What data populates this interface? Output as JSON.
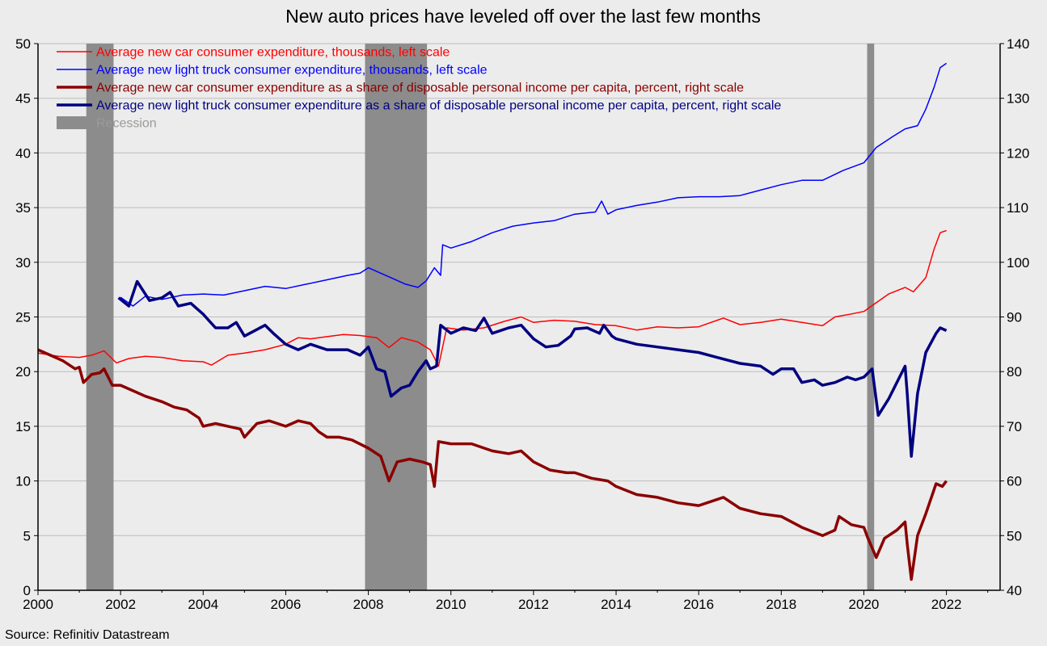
{
  "chart_data": {
    "type": "line",
    "title": "New auto prices have leveled off over the last few months",
    "source": "Source: Refinitiv Datastream",
    "x_ticks": [
      "2000",
      "2002",
      "2004",
      "2006",
      "2008",
      "2010",
      "2012",
      "2014",
      "2016",
      "2018",
      "2020",
      "2022"
    ],
    "xlim": [
      2000,
      2023.3
    ],
    "y_left": {
      "ylim": [
        0,
        50
      ],
      "ticks": [
        0,
        5,
        10,
        15,
        20,
        25,
        30,
        35,
        40,
        45,
        50
      ]
    },
    "y_right": {
      "ylim": [
        40,
        140
      ],
      "ticks": [
        40,
        50,
        60,
        70,
        80,
        90,
        100,
        110,
        120,
        130,
        140
      ]
    },
    "grid": true,
    "legend_position": "top-left",
    "recessions": [
      {
        "start": 2001.17,
        "end": 2001.83
      },
      {
        "start": 2007.92,
        "end": 2009.42
      },
      {
        "start": 2020.08,
        "end": 2020.25
      }
    ],
    "recession_label": "Recession",
    "recession_color": "#8c8c8c",
    "series": [
      {
        "name": "Average new car consumer expenditure, thousands, left scale",
        "axis": "left",
        "color": "#ff0000",
        "width": 1.5,
        "points": [
          [
            2000.0,
            21.7
          ],
          [
            2000.5,
            21.4
          ],
          [
            2001.0,
            21.3
          ],
          [
            2001.3,
            21.5
          ],
          [
            2001.6,
            21.9
          ],
          [
            2001.9,
            20.8
          ],
          [
            2002.2,
            21.2
          ],
          [
            2002.6,
            21.4
          ],
          [
            2003.0,
            21.3
          ],
          [
            2003.5,
            21.0
          ],
          [
            2004.0,
            20.9
          ],
          [
            2004.2,
            20.6
          ],
          [
            2004.6,
            21.5
          ],
          [
            2005.0,
            21.7
          ],
          [
            2005.5,
            22.0
          ],
          [
            2006.0,
            22.5
          ],
          [
            2006.3,
            23.1
          ],
          [
            2006.6,
            23.0
          ],
          [
            2007.0,
            23.2
          ],
          [
            2007.4,
            23.4
          ],
          [
            2007.8,
            23.3
          ],
          [
            2008.2,
            23.1
          ],
          [
            2008.5,
            22.2
          ],
          [
            2008.8,
            23.1
          ],
          [
            2009.2,
            22.7
          ],
          [
            2009.5,
            22.0
          ],
          [
            2009.7,
            20.5
          ],
          [
            2009.9,
            24.0
          ],
          [
            2010.3,
            23.8
          ],
          [
            2010.8,
            24.0
          ],
          [
            2011.3,
            24.6
          ],
          [
            2011.7,
            25.0
          ],
          [
            2012.0,
            24.5
          ],
          [
            2012.5,
            24.7
          ],
          [
            2013.0,
            24.6
          ],
          [
            2013.5,
            24.3
          ],
          [
            2014.0,
            24.2
          ],
          [
            2014.5,
            23.8
          ],
          [
            2015.0,
            24.1
          ],
          [
            2015.5,
            24.0
          ],
          [
            2016.0,
            24.1
          ],
          [
            2016.6,
            24.9
          ],
          [
            2017.0,
            24.3
          ],
          [
            2017.5,
            24.5
          ],
          [
            2018.0,
            24.8
          ],
          [
            2018.5,
            24.5
          ],
          [
            2019.0,
            24.2
          ],
          [
            2019.3,
            25.0
          ],
          [
            2019.6,
            25.2
          ],
          [
            2020.0,
            25.5
          ],
          [
            2020.3,
            26.3
          ],
          [
            2020.6,
            27.1
          ],
          [
            2021.0,
            27.7
          ],
          [
            2021.2,
            27.3
          ],
          [
            2021.5,
            28.6
          ],
          [
            2021.7,
            31.2
          ],
          [
            2021.85,
            32.7
          ],
          [
            2022.0,
            32.9
          ]
        ]
      },
      {
        "name": "Average new light truck consumer expenditure, thousands, left scale",
        "axis": "left",
        "color": "#0000ff",
        "width": 1.5,
        "points": [
          [
            2002.0,
            26.8
          ],
          [
            2002.3,
            26.0
          ],
          [
            2002.6,
            26.9
          ],
          [
            2003.0,
            26.6
          ],
          [
            2003.5,
            27.0
          ],
          [
            2004.0,
            27.1
          ],
          [
            2004.5,
            27.0
          ],
          [
            2005.0,
            27.4
          ],
          [
            2005.5,
            27.8
          ],
          [
            2006.0,
            27.6
          ],
          [
            2006.5,
            28.0
          ],
          [
            2007.0,
            28.4
          ],
          [
            2007.5,
            28.8
          ],
          [
            2007.8,
            29.0
          ],
          [
            2008.0,
            29.5
          ],
          [
            2008.3,
            29.0
          ],
          [
            2008.6,
            28.5
          ],
          [
            2008.9,
            28.0
          ],
          [
            2009.2,
            27.7
          ],
          [
            2009.4,
            28.3
          ],
          [
            2009.6,
            29.5
          ],
          [
            2009.75,
            28.8
          ],
          [
            2009.8,
            31.6
          ],
          [
            2010.0,
            31.3
          ],
          [
            2010.5,
            31.9
          ],
          [
            2011.0,
            32.7
          ],
          [
            2011.5,
            33.3
          ],
          [
            2012.0,
            33.6
          ],
          [
            2012.5,
            33.8
          ],
          [
            2013.0,
            34.4
          ],
          [
            2013.5,
            34.6
          ],
          [
            2013.65,
            35.6
          ],
          [
            2013.8,
            34.4
          ],
          [
            2014.0,
            34.8
          ],
          [
            2014.5,
            35.2
          ],
          [
            2015.0,
            35.5
          ],
          [
            2015.5,
            35.9
          ],
          [
            2016.0,
            36.0
          ],
          [
            2016.5,
            36.0
          ],
          [
            2017.0,
            36.1
          ],
          [
            2017.5,
            36.6
          ],
          [
            2018.0,
            37.1
          ],
          [
            2018.5,
            37.5
          ],
          [
            2019.0,
            37.5
          ],
          [
            2019.5,
            38.4
          ],
          [
            2020.0,
            39.1
          ],
          [
            2020.3,
            40.5
          ],
          [
            2020.7,
            41.5
          ],
          [
            2021.0,
            42.2
          ],
          [
            2021.3,
            42.5
          ],
          [
            2021.5,
            44.0
          ],
          [
            2021.7,
            46.0
          ],
          [
            2021.85,
            47.8
          ],
          [
            2022.0,
            48.2
          ]
        ]
      },
      {
        "name": "Average new car consumer expenditure as a share of disposable personal income per capita, percent, right scale",
        "axis": "right",
        "color": "#8b0000",
        "width": 3.5,
        "points": [
          [
            2000.0,
            84.0
          ],
          [
            2000.3,
            83.0
          ],
          [
            2000.6,
            82.0
          ],
          [
            2000.9,
            80.5
          ],
          [
            2001.0,
            80.8
          ],
          [
            2001.1,
            78.0
          ],
          [
            2001.3,
            79.5
          ],
          [
            2001.5,
            79.8
          ],
          [
            2001.6,
            80.5
          ],
          [
            2001.8,
            77.5
          ],
          [
            2002.0,
            77.5
          ],
          [
            2002.3,
            76.5
          ],
          [
            2002.6,
            75.5
          ],
          [
            2003.0,
            74.5
          ],
          [
            2003.3,
            73.5
          ],
          [
            2003.6,
            73.0
          ],
          [
            2003.9,
            71.5
          ],
          [
            2004.0,
            70.0
          ],
          [
            2004.3,
            70.5
          ],
          [
            2004.6,
            70.0
          ],
          [
            2004.9,
            69.5
          ],
          [
            2005.0,
            68.0
          ],
          [
            2005.3,
            70.5
          ],
          [
            2005.6,
            71.0
          ],
          [
            2006.0,
            70.0
          ],
          [
            2006.3,
            71.0
          ],
          [
            2006.6,
            70.5
          ],
          [
            2006.8,
            69.0
          ],
          [
            2007.0,
            68.0
          ],
          [
            2007.3,
            68.0
          ],
          [
            2007.6,
            67.5
          ],
          [
            2008.0,
            66.0
          ],
          [
            2008.3,
            64.5
          ],
          [
            2008.5,
            60.0
          ],
          [
            2008.7,
            63.5
          ],
          [
            2009.0,
            64.0
          ],
          [
            2009.3,
            63.5
          ],
          [
            2009.5,
            63.0
          ],
          [
            2009.6,
            59.0
          ],
          [
            2009.7,
            67.2
          ],
          [
            2010.0,
            66.8
          ],
          [
            2010.5,
            66.8
          ],
          [
            2011.0,
            65.5
          ],
          [
            2011.4,
            65.0
          ],
          [
            2011.7,
            65.5
          ],
          [
            2012.0,
            63.5
          ],
          [
            2012.4,
            62.0
          ],
          [
            2012.8,
            61.5
          ],
          [
            2013.0,
            61.5
          ],
          [
            2013.4,
            60.5
          ],
          [
            2013.8,
            60.0
          ],
          [
            2014.0,
            59.0
          ],
          [
            2014.5,
            57.5
          ],
          [
            2015.0,
            57.0
          ],
          [
            2015.5,
            56.0
          ],
          [
            2016.0,
            55.5
          ],
          [
            2016.6,
            57.0
          ],
          [
            2017.0,
            55.0
          ],
          [
            2017.5,
            54.0
          ],
          [
            2018.0,
            53.5
          ],
          [
            2018.5,
            51.5
          ],
          [
            2019.0,
            50.0
          ],
          [
            2019.3,
            51.0
          ],
          [
            2019.4,
            53.5
          ],
          [
            2019.7,
            52.0
          ],
          [
            2020.0,
            51.5
          ],
          [
            2020.1,
            49.5
          ],
          [
            2020.3,
            46.0
          ],
          [
            2020.5,
            49.5
          ],
          [
            2020.8,
            51.0
          ],
          [
            2021.0,
            52.5
          ],
          [
            2021.05,
            48.5
          ],
          [
            2021.15,
            42.0
          ],
          [
            2021.3,
            50.0
          ],
          [
            2021.5,
            54.0
          ],
          [
            2021.75,
            59.5
          ],
          [
            2021.9,
            59.0
          ],
          [
            2022.0,
            60.0
          ]
        ]
      },
      {
        "name": "Average new light truck consumer expenditure as a share of disposable personal income per capita, percent, right scale",
        "axis": "right",
        "color": "#000080",
        "width": 3.5,
        "points": [
          [
            2001.95,
            93.5
          ],
          [
            2002.2,
            92.0
          ],
          [
            2002.4,
            96.5
          ],
          [
            2002.7,
            93.0
          ],
          [
            2003.0,
            93.5
          ],
          [
            2003.2,
            94.5
          ],
          [
            2003.4,
            92.0
          ],
          [
            2003.7,
            92.5
          ],
          [
            2004.0,
            90.5
          ],
          [
            2004.3,
            88.0
          ],
          [
            2004.6,
            88.0
          ],
          [
            2004.8,
            89.0
          ],
          [
            2005.0,
            86.5
          ],
          [
            2005.5,
            88.5
          ],
          [
            2005.7,
            87.0
          ],
          [
            2006.0,
            85.0
          ],
          [
            2006.3,
            84.0
          ],
          [
            2006.6,
            85.0
          ],
          [
            2007.0,
            84.0
          ],
          [
            2007.5,
            84.0
          ],
          [
            2007.8,
            83.0
          ],
          [
            2008.0,
            84.5
          ],
          [
            2008.2,
            80.5
          ],
          [
            2008.4,
            80.0
          ],
          [
            2008.55,
            75.5
          ],
          [
            2008.8,
            77.0
          ],
          [
            2009.0,
            77.5
          ],
          [
            2009.2,
            80.0
          ],
          [
            2009.4,
            82.0
          ],
          [
            2009.5,
            80.5
          ],
          [
            2009.65,
            81.0
          ],
          [
            2009.75,
            88.5
          ],
          [
            2010.0,
            87.0
          ],
          [
            2010.3,
            88.0
          ],
          [
            2010.6,
            87.5
          ],
          [
            2010.8,
            89.8
          ],
          [
            2011.0,
            87.0
          ],
          [
            2011.4,
            88.0
          ],
          [
            2011.7,
            88.5
          ],
          [
            2012.0,
            86.0
          ],
          [
            2012.3,
            84.5
          ],
          [
            2012.6,
            84.8
          ],
          [
            2012.9,
            86.5
          ],
          [
            2013.0,
            87.8
          ],
          [
            2013.3,
            88.0
          ],
          [
            2013.6,
            87.0
          ],
          [
            2013.7,
            88.5
          ],
          [
            2013.9,
            86.5
          ],
          [
            2014.0,
            86.0
          ],
          [
            2014.5,
            85.0
          ],
          [
            2015.0,
            84.5
          ],
          [
            2015.5,
            84.0
          ],
          [
            2016.0,
            83.5
          ],
          [
            2016.5,
            82.5
          ],
          [
            2017.0,
            81.5
          ],
          [
            2017.5,
            81.0
          ],
          [
            2017.8,
            79.5
          ],
          [
            2018.0,
            80.5
          ],
          [
            2018.3,
            80.5
          ],
          [
            2018.5,
            78.0
          ],
          [
            2018.8,
            78.5
          ],
          [
            2019.0,
            77.5
          ],
          [
            2019.3,
            78.0
          ],
          [
            2019.6,
            79.0
          ],
          [
            2019.8,
            78.5
          ],
          [
            2020.0,
            79.0
          ],
          [
            2020.2,
            80.5
          ],
          [
            2020.35,
            72.0
          ],
          [
            2020.6,
            75.0
          ],
          [
            2020.8,
            78.0
          ],
          [
            2021.0,
            81.0
          ],
          [
            2021.05,
            76.0
          ],
          [
            2021.15,
            64.5
          ],
          [
            2021.3,
            76.0
          ],
          [
            2021.5,
            83.5
          ],
          [
            2021.75,
            87.0
          ],
          [
            2021.85,
            88.0
          ],
          [
            2022.0,
            87.5
          ]
        ]
      }
    ]
  }
}
